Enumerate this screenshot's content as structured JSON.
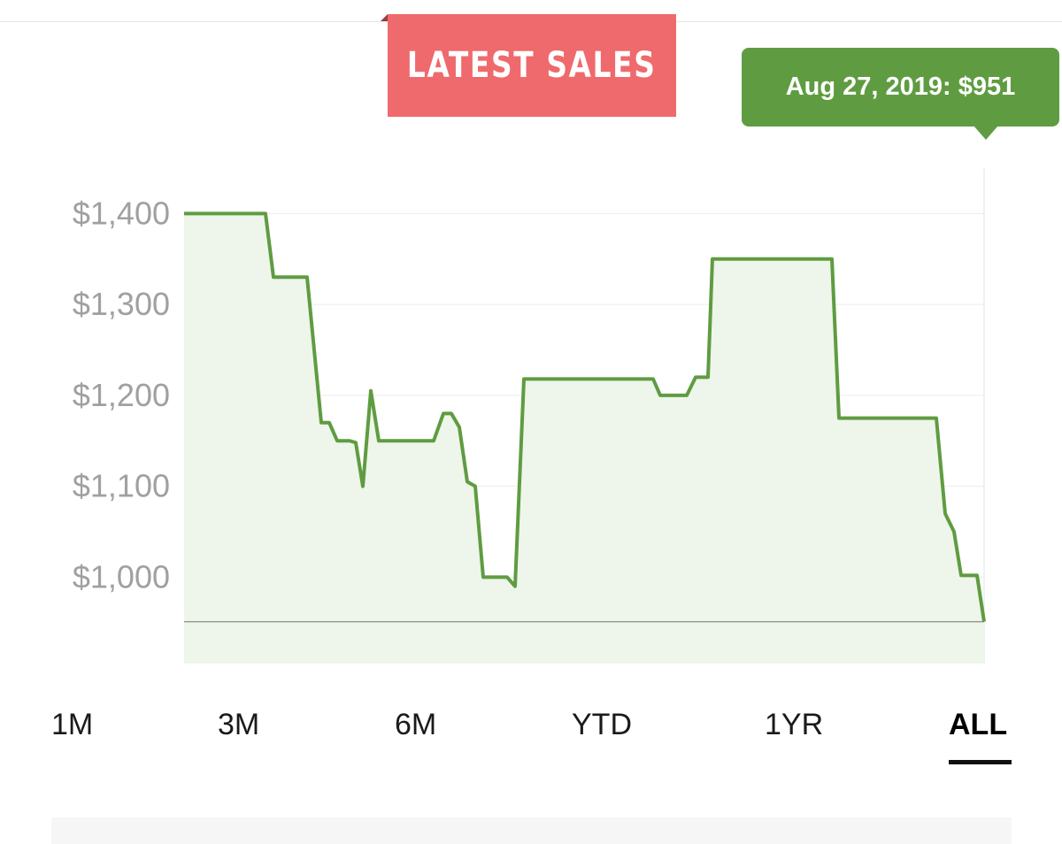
{
  "header": {
    "title": "LATEST SALES"
  },
  "tooltip": {
    "text": "Aug 27, 2019: $951"
  },
  "tabs": [
    {
      "label": "1M",
      "active": false
    },
    {
      "label": "3M",
      "active": false
    },
    {
      "label": "6M",
      "active": false
    },
    {
      "label": "YTD",
      "active": false
    },
    {
      "label": "1YR",
      "active": false
    },
    {
      "label": "ALL",
      "active": true
    }
  ],
  "colors": {
    "banner": "#ef6a6c",
    "line": "#5f9c41",
    "fill": "#eef5ea",
    "tooltip": "#5f9c41",
    "tick_label": "#a0a0a0"
  },
  "chart_data": {
    "type": "line",
    "title": "",
    "xlabel": "",
    "ylabel": "",
    "ylim": [
      905,
      1450
    ],
    "y_ticks": [
      1000,
      1100,
      1200,
      1300,
      1400
    ],
    "y_tick_labels": [
      "$1,000",
      "$1,100",
      "$1,200",
      "$1,300",
      "$1,400"
    ],
    "baseline": 951,
    "grid": true,
    "fill_under": true,
    "x_ticks_shown": false,
    "series": [
      {
        "values": [
          1400,
          1400,
          1330,
          1330,
          1330,
          1170,
          1170,
          1150,
          1150,
          1148,
          1100,
          1205,
          1150,
          1150,
          1150,
          1150,
          1180,
          1180,
          1165,
          1105,
          1100,
          1000,
          1000,
          1000,
          990,
          1218,
          1218,
          1218,
          1218,
          1218,
          1218,
          1200,
          1200,
          1200,
          1220,
          1220,
          1220,
          1350,
          1350,
          1350,
          1350,
          1175,
          1175,
          1175,
          1175,
          1175,
          1070,
          1050,
          1002,
          1002,
          1002,
          951
        ]
      }
    ]
  }
}
